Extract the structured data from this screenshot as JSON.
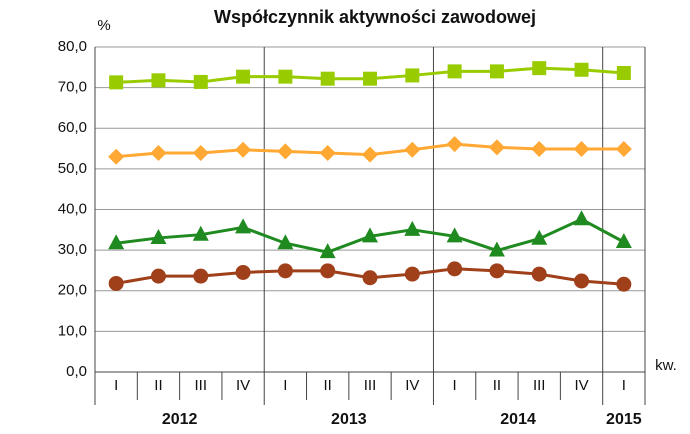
{
  "chart_data": {
    "type": "line",
    "title": "Współczynnik aktywności zawodowej",
    "y_label": "%",
    "x_label": "kw.",
    "categories": [
      "I",
      "II",
      "III",
      "IV",
      "I",
      "II",
      "III",
      "IV",
      "I",
      "II",
      "III",
      "IV",
      "I"
    ],
    "years": [
      "2012",
      "2013",
      "2014",
      "2015"
    ],
    "series": [
      {
        "color": "#99cc00",
        "marker": "square",
        "values": [
          71.3,
          71.8,
          71.4,
          72.7,
          72.7,
          72.2,
          72.2,
          73.0,
          74.0,
          74.0,
          74.8,
          74.4,
          73.6
        ]
      },
      {
        "color": "#ffa833",
        "marker": "diamond",
        "values": [
          53.0,
          53.9,
          53.9,
          54.7,
          54.3,
          53.9,
          53.5,
          54.7,
          56.1,
          55.3,
          54.9,
          54.9,
          54.9
        ]
      },
      {
        "color": "#1f8a1f",
        "marker": "triangle",
        "values": [
          31.7,
          33.0,
          33.8,
          35.6,
          31.7,
          29.5,
          33.4,
          35.0,
          33.4,
          29.9,
          32.8,
          37.6,
          32.0
        ]
      },
      {
        "color": "#a0401a",
        "marker": "circle",
        "values": [
          21.8,
          23.6,
          23.6,
          24.5,
          24.9,
          24.9,
          23.2,
          24.1,
          25.4,
          24.9,
          24.1,
          22.4,
          21.6
        ]
      }
    ],
    "ylim": [
      0,
      80
    ],
    "yticks": [
      {
        "value": 0,
        "label": "0,0"
      },
      {
        "value": 10,
        "label": "10,0"
      },
      {
        "value": 20,
        "label": "20,0"
      },
      {
        "value": 30,
        "label": "30,0"
      },
      {
        "value": 40,
        "label": "40,0"
      },
      {
        "value": 50,
        "label": "50,0"
      },
      {
        "value": 60,
        "label": "60,0"
      },
      {
        "value": 70,
        "label": "70,0"
      },
      {
        "value": 80,
        "label": "80,0"
      }
    ],
    "grid": true
  }
}
